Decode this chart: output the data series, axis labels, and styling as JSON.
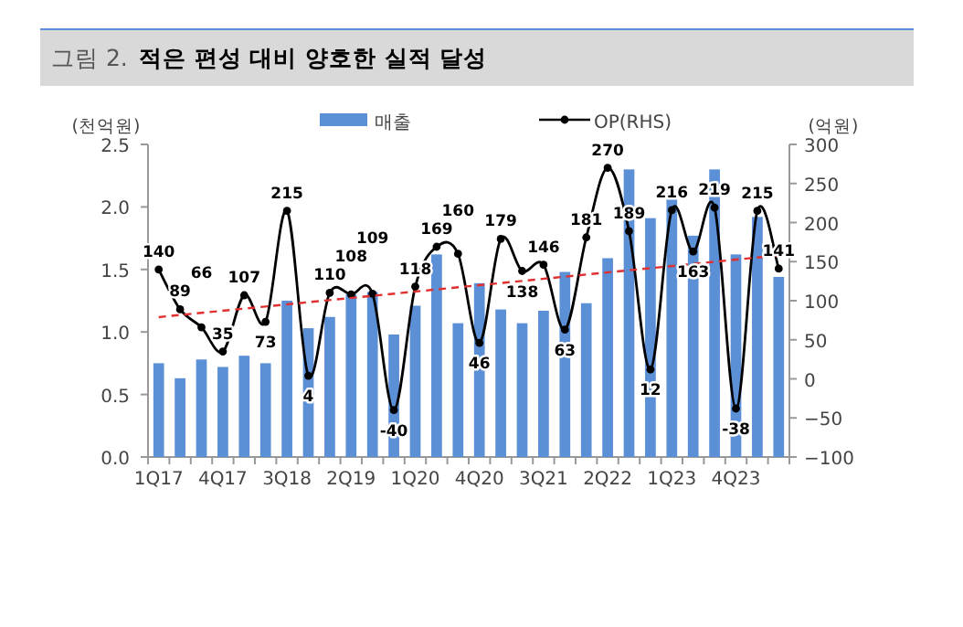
{
  "chart_data": {
    "type": "bar",
    "title": "그림 2. 적은 편성 대비 양호한 실적 달성",
    "ylabel": "(천억원)",
    "y2label": "(억원)",
    "categories": [
      "1Q17",
      null,
      null,
      "4Q17",
      null,
      null,
      "3Q18",
      null,
      null,
      "2Q19",
      null,
      null,
      "1Q20",
      null,
      null,
      "4Q20",
      null,
      null,
      "3Q21",
      null,
      null,
      "2Q22",
      null,
      null,
      "1Q23",
      null,
      null,
      "4Q23",
      null,
      null
    ],
    "ylim": [
      0,
      2.5
    ],
    "yticks": [
      {
        "value": 0,
        "label": "0.0"
      },
      {
        "value": 0.5,
        "label": "0.5"
      },
      {
        "value": 1,
        "label": "1.0"
      },
      {
        "value": 1.5,
        "label": "1.5"
      },
      {
        "value": 2,
        "label": "2.0"
      },
      {
        "value": 2.5,
        "label": "2.5"
      }
    ],
    "y2lim": [
      -100,
      300
    ],
    "y2ticks": [
      {
        "value": -100,
        "label": "−100"
      },
      {
        "value": -50,
        "label": "−50"
      },
      0,
      50,
      100,
      150,
      200,
      250,
      300
    ],
    "legend": "top",
    "grid": false,
    "series": [
      {
        "name": "매출",
        "color": "#5b8fd6",
        "values": [
          0.75,
          0.63,
          0.78,
          0.72,
          0.81,
          0.75,
          1.25,
          1.03,
          1.12,
          1.3,
          1.32,
          0.98,
          1.21,
          1.62,
          1.07,
          1.39,
          1.18,
          1.07,
          1.17,
          1.48,
          1.23,
          1.59,
          2.3,
          1.91,
          2.11,
          1.77,
          2.3,
          1.62,
          1.92,
          1.44
        ]
      },
      {
        "name": "OP(RHS)",
        "type": "line",
        "axis": "y2",
        "color": "#000000",
        "marker": "circle",
        "line_style": "solid",
        "values": [
          140,
          89,
          66,
          35,
          107,
          73,
          215,
          4,
          110,
          108,
          109,
          -40,
          118,
          169,
          160,
          46,
          179,
          138,
          146,
          63,
          181,
          270,
          189,
          12,
          216,
          163,
          219,
          -38,
          215,
          141
        ],
        "value_labels": [
          "140",
          "89",
          "66",
          "35",
          "107",
          "73",
          "215",
          "4",
          "110",
          "108",
          "109",
          "-40",
          "118",
          "169",
          "160",
          "46",
          "179",
          "138",
          "146",
          "63",
          "181",
          "270",
          "189",
          "12",
          "216",
          "163",
          "219",
          "-38",
          "215",
          "141"
        ]
      },
      {
        "type": "line",
        "axis": "y2",
        "color": "#e03030",
        "line_style": "dashed",
        "marker": "none",
        "values": [
          79,
          null,
          null,
          null,
          null,
          null,
          null,
          null,
          null,
          null,
          null,
          null,
          null,
          null,
          null,
          null,
          null,
          null,
          null,
          null,
          null,
          null,
          null,
          null,
          null,
          null,
          null,
          null,
          null,
          158
        ]
      }
    ]
  }
}
